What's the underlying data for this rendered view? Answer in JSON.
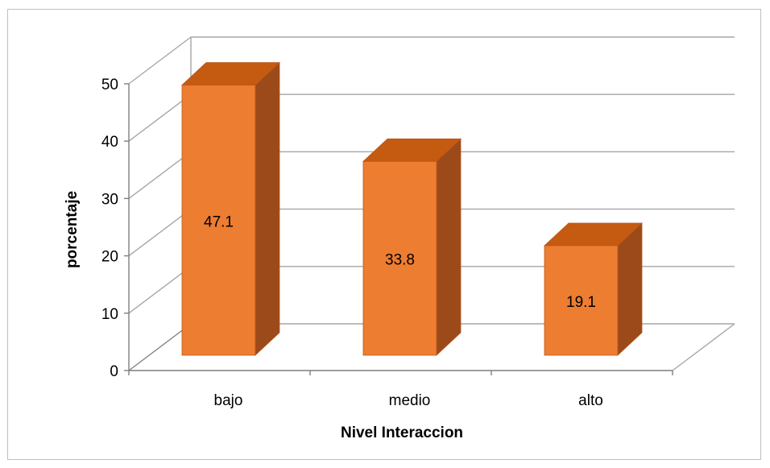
{
  "chart_data": {
    "type": "bar",
    "style": "3d-column",
    "categories": [
      "bajo",
      "medio",
      "alto"
    ],
    "values": [
      47.1,
      33.8,
      19.1
    ],
    "data_labels": [
      "47.1",
      "33.8",
      "19.1"
    ],
    "title": "",
    "xlabel": "Nivel Interaccion",
    "ylabel": "porcentaje",
    "ylim": [
      0,
      50
    ],
    "yticks": [
      0,
      10,
      20,
      30,
      40,
      50
    ],
    "grid": true,
    "legend": "none",
    "colors": {
      "bar_front": "#ed7d31",
      "bar_top": "#c55a11",
      "bar_side": "#9c4a1a",
      "bar_edge": "#b8581c",
      "grid": "#a6a6a6",
      "axis": "#7f7f7f"
    }
  }
}
